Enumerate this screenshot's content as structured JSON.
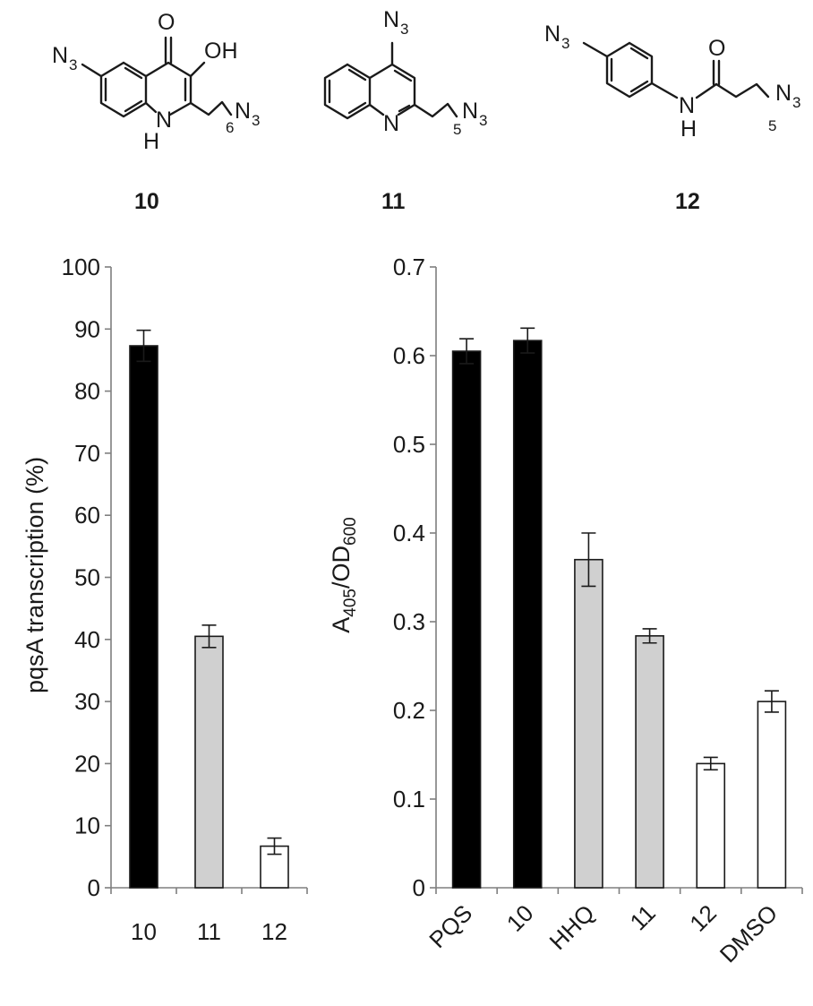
{
  "structures": [
    {
      "label": "10",
      "atoms": {
        "o_top": "O",
        "oh": "OH",
        "n3_left": "N",
        "n3_left_sub": "3",
        "nh_n": "N",
        "nh_h": "H",
        "chain_sub": "6",
        "n3_chain": "N",
        "n3_chain_sub": "3"
      }
    },
    {
      "label": "11",
      "atoms": {
        "n3_top": "N",
        "n3_top_sub": "3",
        "ring_n": "N",
        "chain_sub": "5",
        "n3_chain": "N",
        "n3_chain_sub": "3"
      }
    },
    {
      "label": "12",
      "atoms": {
        "n3_left": "N",
        "n3_left_sub": "3",
        "o_amide": "O",
        "nh_n": "N",
        "nh_h": "H",
        "chain_sub": "5",
        "n3_chain": "N",
        "n3_chain_sub": "3"
      }
    }
  ],
  "chart_data": [
    {
      "type": "bar",
      "categories": [
        "10",
        "11",
        "12"
      ],
      "values": [
        87.3,
        40.5,
        6.7
      ],
      "errors": [
        2.5,
        1.8,
        1.3
      ],
      "fills": [
        "#000000",
        "#d0d0d0",
        "#ffffff"
      ],
      "ylim": [
        0,
        100
      ],
      "yticks": [
        "0",
        "10",
        "20",
        "30",
        "40",
        "50",
        "60",
        "70",
        "80",
        "90",
        "100"
      ],
      "ylabel": "pqsA transcription (%)",
      "xlabel": ""
    },
    {
      "type": "bar",
      "categories": [
        "PQS",
        "10",
        "HHQ",
        "11",
        "12",
        "DMSO"
      ],
      "values": [
        0.605,
        0.617,
        0.37,
        0.284,
        0.14,
        0.21
      ],
      "errors": [
        0.014,
        0.014,
        0.03,
        0.008,
        0.007,
        0.012
      ],
      "fills": [
        "#000000",
        "#000000",
        "#d0d0d0",
        "#d0d0d0",
        "#ffffff",
        "#ffffff"
      ],
      "ylim": [
        0,
        0.7
      ],
      "yticks": [
        "0",
        "0.1",
        "0.2",
        "0.3",
        "0.4",
        "0.5",
        "0.6",
        "0.7"
      ],
      "ylabel_main": "A",
      "ylabel_sub1": "405",
      "ylabel_mid": "/OD",
      "ylabel_sub2": "600",
      "xlabel": ""
    }
  ]
}
